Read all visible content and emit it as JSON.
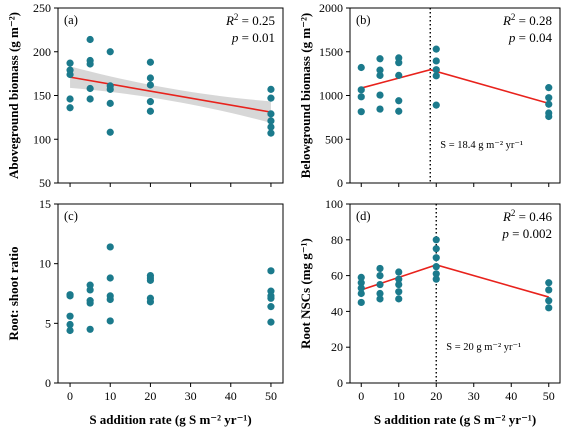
{
  "chart_data": [
    {
      "type": "scatter",
      "panel_label": "(a)",
      "ylabel": "Aboveground biomass",
      "ylabel_unit": "(g m⁻²)",
      "xlabel": "",
      "xlim": [
        -3,
        53
      ],
      "ylim": [
        50,
        250
      ],
      "x_ticks": [
        "0",
        "10",
        "20",
        "30",
        "40",
        "50"
      ],
      "x_tick_labels_shown": false,
      "y_ticks": [
        "50",
        "100",
        "150",
        "200",
        "250"
      ],
      "stats": {
        "r2_label": "R",
        "r2_value": "= 0.25",
        "p_label": "p",
        "p_value": "= 0.01"
      },
      "fit": {
        "kind": "linear",
        "color": "#e8221c",
        "points": [
          [
            0,
            171
          ],
          [
            50,
            131
          ]
        ],
        "ci_band": true
      },
      "points": [
        [
          0,
          187
        ],
        [
          0,
          179
        ],
        [
          0,
          174
        ],
        [
          0,
          146
        ],
        [
          0,
          136
        ],
        [
          5,
          214
        ],
        [
          5,
          190
        ],
        [
          5,
          186
        ],
        [
          5,
          158
        ],
        [
          5,
          146
        ],
        [
          10,
          200
        ],
        [
          10,
          161
        ],
        [
          10,
          157
        ],
        [
          10,
          141
        ],
        [
          10,
          108
        ],
        [
          20,
          188
        ],
        [
          20,
          170
        ],
        [
          20,
          162
        ],
        [
          20,
          143
        ],
        [
          20,
          132
        ],
        [
          50,
          157
        ],
        [
          50,
          147
        ],
        [
          50,
          129
        ],
        [
          50,
          121
        ],
        [
          50,
          114
        ],
        [
          50,
          107
        ]
      ]
    },
    {
      "type": "scatter",
      "panel_label": "(b)",
      "ylabel": "Belowground biomass",
      "ylabel_unit": "(g m⁻²)",
      "xlabel": "",
      "xlim": [
        -3,
        53
      ],
      "ylim": [
        0,
        2000
      ],
      "x_ticks": [
        "0",
        "10",
        "20",
        "30",
        "40",
        "50"
      ],
      "x_tick_labels_shown": false,
      "y_ticks": [
        "0",
        "500",
        "1000",
        "1500",
        "2000"
      ],
      "stats": {
        "r2_label": "R",
        "r2_value": "= 0.28",
        "p_label": "p",
        "p_value": "= 0.04"
      },
      "breakpoint": {
        "x": 18.4,
        "label": "S = 18.4 g m⁻² yr⁻¹"
      },
      "fit": {
        "kind": "piecewise",
        "color": "#e8221c",
        "points": [
          [
            0,
            1085
          ],
          [
            18.4,
            1295
          ],
          [
            50,
            910
          ]
        ]
      },
      "points": [
        [
          0,
          1320
        ],
        [
          0,
          1065
        ],
        [
          0,
          985
        ],
        [
          0,
          815
        ],
        [
          5,
          1420
        ],
        [
          5,
          1290
        ],
        [
          5,
          1230
        ],
        [
          5,
          1005
        ],
        [
          5,
          845
        ],
        [
          10,
          1430
        ],
        [
          10,
          1375
        ],
        [
          10,
          1230
        ],
        [
          10,
          940
        ],
        [
          10,
          820
        ],
        [
          20,
          1530
        ],
        [
          20,
          1395
        ],
        [
          20,
          1295
        ],
        [
          20,
          1225
        ],
        [
          20,
          890
        ],
        [
          50,
          1090
        ],
        [
          50,
          975
        ],
        [
          50,
          900
        ],
        [
          50,
          800
        ],
        [
          50,
          760
        ]
      ]
    },
    {
      "type": "scatter",
      "panel_label": "(c)",
      "ylabel": "Root: shoot ratio",
      "xlabel": "S addition rate",
      "xlabel_unit": "(g S m⁻² yr⁻¹)",
      "xlim": [
        -3,
        53
      ],
      "ylim": [
        0,
        15
      ],
      "x_ticks": [
        "0",
        "10",
        "20",
        "30",
        "40",
        "50"
      ],
      "x_tick_labels_shown": true,
      "y_ticks": [
        "0",
        "5",
        "10",
        "15"
      ],
      "points": [
        [
          0,
          7.4
        ],
        [
          0,
          7.3
        ],
        [
          0,
          5.6
        ],
        [
          0,
          4.9
        ],
        [
          0,
          4.4
        ],
        [
          5,
          8.2
        ],
        [
          5,
          7.8
        ],
        [
          5,
          6.9
        ],
        [
          5,
          6.7
        ],
        [
          5,
          4.5
        ],
        [
          10,
          11.4
        ],
        [
          10,
          8.8
        ],
        [
          10,
          7.3
        ],
        [
          10,
          7.0
        ],
        [
          10,
          5.2
        ],
        [
          20,
          9.0
        ],
        [
          20,
          8.8
        ],
        [
          20,
          8.6
        ],
        [
          20,
          7.1
        ],
        [
          20,
          6.8
        ],
        [
          50,
          9.4
        ],
        [
          50,
          7.7
        ],
        [
          50,
          7.3
        ],
        [
          50,
          7.1
        ],
        [
          50,
          6.4
        ],
        [
          50,
          5.1
        ]
      ]
    },
    {
      "type": "scatter",
      "panel_label": "(d)",
      "ylabel": "Root NSCs",
      "ylabel_unit": "(mg g⁻¹)",
      "xlabel": "S addition rate",
      "xlabel_unit": "(g S m⁻² yr⁻¹)",
      "xlim": [
        -3,
        53
      ],
      "ylim": [
        0,
        100
      ],
      "x_ticks": [
        "0",
        "10",
        "20",
        "30",
        "40",
        "50"
      ],
      "x_tick_labels_shown": true,
      "y_ticks": [
        "0",
        "20",
        "40",
        "60",
        "80",
        "100"
      ],
      "stats": {
        "r2_label": "R",
        "r2_value": "= 0.46",
        "p_label": "p",
        "p_value": "= 0.002"
      },
      "breakpoint": {
        "x": 20,
        "label": "S = 20 g m⁻² yr⁻¹"
      },
      "fit": {
        "kind": "piecewise",
        "color": "#e8221c",
        "points": [
          [
            0,
            52
          ],
          [
            20,
            66
          ],
          [
            50,
            48
          ]
        ]
      },
      "points": [
        [
          0,
          59
        ],
        [
          0,
          56
        ],
        [
          0,
          53
        ],
        [
          0,
          50
        ],
        [
          0,
          45
        ],
        [
          5,
          64
        ],
        [
          5,
          60
        ],
        [
          5,
          55
        ],
        [
          5,
          50
        ],
        [
          5,
          47
        ],
        [
          10,
          62
        ],
        [
          10,
          58
        ],
        [
          10,
          55
        ],
        [
          10,
          51
        ],
        [
          10,
          47
        ],
        [
          20,
          80
        ],
        [
          20,
          75
        ],
        [
          20,
          70
        ],
        [
          20,
          65
        ],
        [
          20,
          61
        ],
        [
          20,
          58
        ],
        [
          50,
          56
        ],
        [
          50,
          52
        ],
        [
          50,
          46
        ],
        [
          50,
          42
        ]
      ]
    }
  ],
  "colors": {
    "point": "#1b7a8c",
    "fit": "#e8221c",
    "band": "#c9c9c9",
    "axis": "#000000"
  }
}
